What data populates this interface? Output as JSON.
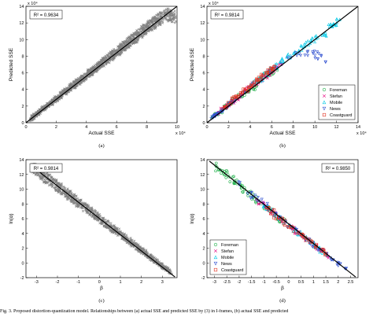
{
  "figure": {
    "caption": "Fig. 3. Proposed distortion-quantization model. Relationships between (a) actual SSE and predicted SSE by (3) in I-frames, (b) actual SSE and predicted"
  },
  "chart_data": [
    {
      "panel": "(a)",
      "type": "scatter",
      "xlabel": "Actual SSE",
      "ylabel": "Predicted SSE",
      "x_exponent": "x 10⁴",
      "y_exponent": "x 10⁴",
      "xlim": [
        0,
        10
      ],
      "ylim": [
        0,
        14
      ],
      "xticks": [
        "0",
        "2",
        "4",
        "6",
        "8",
        "10"
      ],
      "yticks": [
        "0",
        "2",
        "4",
        "6",
        "8",
        "10",
        "12",
        "14"
      ],
      "annotation": "R² = 0.9634",
      "fit_line": [
        [
          0,
          0
        ],
        [
          10,
          14
        ]
      ],
      "marker": "x",
      "color": "#808080",
      "series": [
        {
          "points": [
            [
              0.3,
              0.4
            ],
            [
              0.6,
              0.9
            ],
            [
              0.9,
              1.3
            ],
            [
              1.2,
              1.8
            ],
            [
              1.5,
              2.2
            ],
            [
              1.8,
              2.6
            ],
            [
              2.1,
              3.0
            ],
            [
              2.4,
              3.5
            ],
            [
              2.7,
              3.9
            ],
            [
              3.0,
              4.3
            ],
            [
              3.3,
              4.7
            ],
            [
              3.6,
              5.1
            ],
            [
              3.9,
              5.5
            ],
            [
              4.2,
              6.0
            ],
            [
              4.5,
              6.4
            ],
            [
              4.8,
              6.8
            ],
            [
              5.1,
              7.3
            ],
            [
              5.4,
              7.6
            ],
            [
              5.7,
              8.1
            ],
            [
              6.0,
              8.5
            ],
            [
              6.3,
              8.9
            ],
            [
              6.6,
              9.3
            ],
            [
              6.9,
              9.8
            ],
            [
              7.2,
              10.2
            ],
            [
              7.5,
              10.6
            ],
            [
              7.8,
              11.1
            ],
            [
              8.1,
              11.5
            ],
            [
              8.4,
              11.9
            ],
            [
              8.7,
              12.3
            ],
            [
              9.0,
              12.7
            ],
            [
              9.5,
              13.0
            ],
            [
              9.9,
              12.6
            ]
          ]
        }
      ]
    },
    {
      "panel": "(b)",
      "type": "scatter",
      "xlabel": "Actual SSE",
      "ylabel": "Predicted SSE",
      "x_exponent": "x 10⁴",
      "y_exponent": "x 10⁴",
      "xlim": [
        0,
        14
      ],
      "ylim": [
        0,
        14
      ],
      "xticks": [
        "0",
        "2",
        "4",
        "6",
        "8",
        "10",
        "12",
        "14"
      ],
      "yticks": [
        "0",
        "2",
        "4",
        "6",
        "8",
        "10",
        "12",
        "14"
      ],
      "annotation": "R² = 0.9814",
      "fit_line": [
        [
          0,
          0
        ],
        [
          14,
          14
        ]
      ],
      "legend_position": "bottom-right",
      "series": [
        {
          "name": "Foreman",
          "marker": "o",
          "color": "#22b14c",
          "points": [
            [
              0.5,
              0.6
            ],
            [
              1.2,
              1.3
            ],
            [
              2.0,
              2.2
            ],
            [
              2.8,
              3.0
            ],
            [
              3.5,
              3.6
            ],
            [
              4.3,
              4.1
            ],
            [
              5.0,
              5.3
            ],
            [
              5.8,
              6.0
            ],
            [
              6.5,
              6.3
            ]
          ]
        },
        {
          "name": "Stefan",
          "marker": "x",
          "color": "#e6007e",
          "points": [
            [
              0.8,
              1.0
            ],
            [
              1.6,
              1.8
            ],
            [
              2.5,
              2.6
            ],
            [
              3.3,
              3.4
            ],
            [
              4.2,
              4.5
            ],
            [
              5.1,
              5.0
            ],
            [
              6.0,
              6.2
            ],
            [
              6.9,
              7.0
            ]
          ]
        },
        {
          "name": "Mobile",
          "marker": "^",
          "color": "#00c8e6",
          "points": [
            [
              4.0,
              4.5
            ],
            [
              5.2,
              5.5
            ],
            [
              6.3,
              6.8
            ],
            [
              7.4,
              7.9
            ],
            [
              8.5,
              8.6
            ],
            [
              9.6,
              9.9
            ],
            [
              10.7,
              10.5
            ],
            [
              11.6,
              11.7
            ],
            [
              12.3,
              12.4
            ]
          ]
        },
        {
          "name": "News",
          "marker": "v",
          "color": "#3050d0",
          "points": [
            [
              0.4,
              0.5
            ],
            [
              0.9,
              1.1
            ],
            [
              1.5,
              1.5
            ],
            [
              2.1,
              2.2
            ],
            [
              2.7,
              2.9
            ],
            [
              7.5,
              7.8
            ],
            [
              9.8,
              8.5
            ],
            [
              11.0,
              7.3
            ]
          ]
        },
        {
          "name": "Coastguard",
          "marker": "s",
          "color": "#e03020",
          "points": [
            [
              1.5,
              1.7
            ],
            [
              2.3,
              2.6
            ],
            [
              3.1,
              3.4
            ],
            [
              3.9,
              4.3
            ],
            [
              4.7,
              5.1
            ],
            [
              5.5,
              5.9
            ],
            [
              6.2,
              6.7
            ]
          ]
        }
      ]
    },
    {
      "panel": "(c)",
      "type": "scatter",
      "xlabel": "β",
      "ylabel": "ln(α)",
      "xlim": [
        -3.5,
        3.7
      ],
      "ylim": [
        -2,
        14
      ],
      "xticks": [
        "-3",
        "-2",
        "-1",
        "0",
        "1",
        "2",
        "3"
      ],
      "yticks": [
        "-2",
        "0",
        "2",
        "4",
        "6",
        "8",
        "10",
        "12",
        "14"
      ],
      "annotation": "R² = 0.9814",
      "fit_line": [
        [
          -3.3,
          13.3
        ],
        [
          3.6,
          -1.9
        ]
      ],
      "marker": "x",
      "color": "#808080",
      "series": [
        {
          "points": [
            [
              -3.2,
              13.0
            ],
            [
              -2.9,
              12.4
            ],
            [
              -2.6,
              11.7
            ],
            [
              -2.3,
              11.1
            ],
            [
              -2.0,
              10.4
            ],
            [
              -1.7,
              9.7
            ],
            [
              -1.4,
              9.1
            ],
            [
              -1.1,
              8.4
            ],
            [
              -0.8,
              7.8
            ],
            [
              -0.5,
              7.1
            ],
            [
              -0.2,
              6.5
            ],
            [
              0.1,
              5.8
            ],
            [
              0.4,
              5.2
            ],
            [
              0.7,
              4.5
            ],
            [
              1.0,
              3.9
            ],
            [
              1.3,
              3.2
            ],
            [
              1.6,
              2.6
            ],
            [
              1.9,
              1.9
            ],
            [
              2.2,
              1.3
            ],
            [
              2.5,
              0.6
            ],
            [
              2.8,
              0.0
            ],
            [
              3.1,
              -0.6
            ],
            [
              3.4,
              -1.3
            ]
          ]
        }
      ]
    },
    {
      "panel": "(d)",
      "type": "scatter",
      "xlabel": "β",
      "ylabel": "ln(α)",
      "xlim": [
        -3.3,
        2.8
      ],
      "ylim": [
        -2,
        14
      ],
      "xticks": [
        "-3",
        "-2.5",
        "-2",
        "-1.5",
        "-1",
        "-0.5",
        "0",
        "0.5",
        "1",
        "1.5",
        "2",
        "2.5"
      ],
      "yticks": [
        "-2",
        "0",
        "2",
        "4",
        "6",
        "8",
        "10",
        "12",
        "14"
      ],
      "annotation": "R² = 0.9850",
      "fit_line": [
        [
          -3.2,
          13.8
        ],
        [
          2.7,
          -1.9
        ]
      ],
      "legend_position": "bottom-left",
      "series": [
        {
          "name": "Foreman",
          "marker": "o",
          "color": "#22b14c",
          "points": [
            [
              -2.9,
              13.0
            ],
            [
              -2.6,
              12.4
            ],
            [
              -2.2,
              11.0
            ],
            [
              -1.9,
              10.2
            ],
            [
              -1.5,
              9.1
            ],
            [
              -1.1,
              8.0
            ],
            [
              -0.7,
              6.9
            ],
            [
              -0.2,
              5.6
            ]
          ]
        },
        {
          "name": "Stefan",
          "marker": "x",
          "color": "#e6007e",
          "points": [
            [
              -1.3,
              8.6
            ],
            [
              -0.8,
              7.3
            ],
            [
              -0.3,
              5.9
            ],
            [
              0.2,
              4.5
            ],
            [
              0.7,
              3.3
            ],
            [
              1.2,
              2.0
            ],
            [
              1.6,
              0.9
            ]
          ]
        },
        {
          "name": "Mobile",
          "marker": "^",
          "color": "#00c8e6",
          "points": [
            [
              -1.0,
              7.8
            ],
            [
              -0.5,
              6.5
            ],
            [
              0.0,
              5.1
            ],
            [
              0.5,
              3.8
            ],
            [
              1.0,
              2.5
            ],
            [
              1.5,
              1.2
            ]
          ]
        },
        {
          "name": "News",
          "marker": "v",
          "color": "#3050d0",
          "points": [
            [
              -2.0,
              10.6
            ],
            [
              -1.2,
              8.4
            ],
            [
              -0.4,
              6.2
            ],
            [
              0.4,
              4.0
            ],
            [
              1.1,
              2.2
            ],
            [
              1.8,
              0.4
            ],
            [
              2.3,
              -0.8
            ]
          ]
        },
        {
          "name": "Coastguard",
          "marker": "s",
          "color": "#e03020",
          "points": [
            [
              -0.9,
              7.5
            ],
            [
              -0.4,
              6.1
            ],
            [
              0.1,
              4.8
            ],
            [
              0.6,
              3.5
            ],
            [
              1.1,
              2.3
            ],
            [
              1.5,
              1.3
            ]
          ]
        }
      ]
    }
  ]
}
